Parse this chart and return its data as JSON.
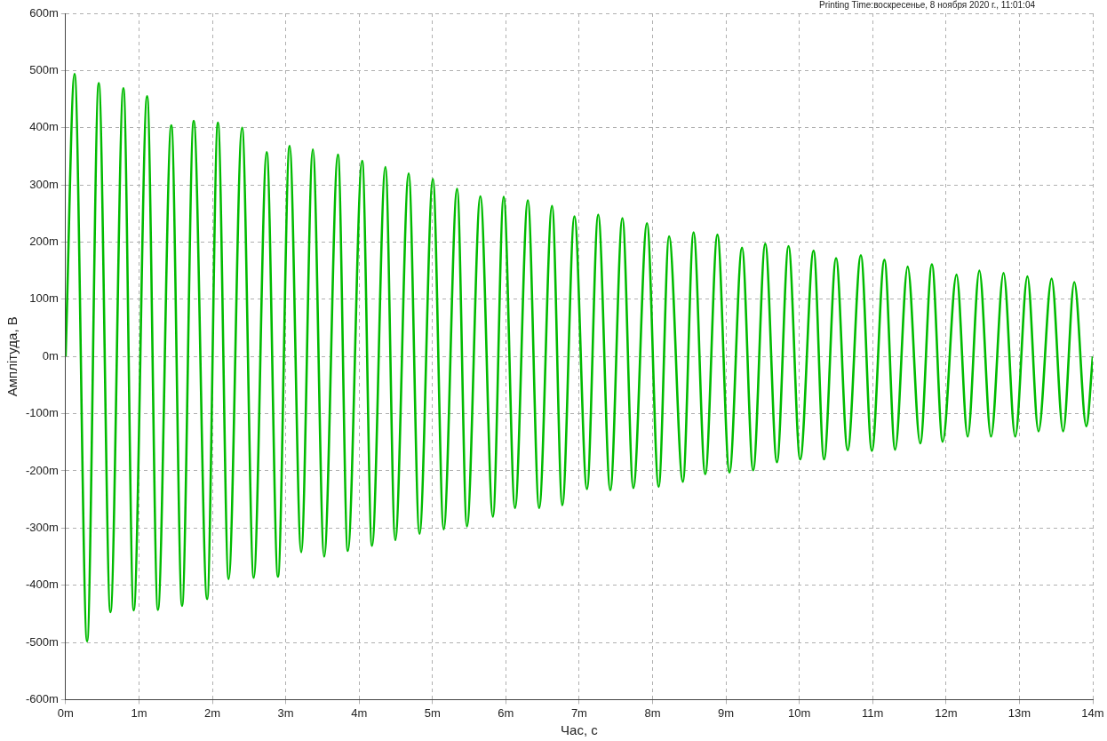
{
  "chart_data": {
    "type": "line",
    "xlabel": "Час, с",
    "ylabel": "Амплітуда, В",
    "annotations": [
      "Printing Time:воскресенье, 8 ноября 2020 г., 11:01:04"
    ],
    "x": [
      0,
      0.122,
      0.293,
      0.452,
      0.611,
      0.788,
      0.928,
      1.111,
      1.258,
      1.441,
      1.587,
      1.746,
      1.929,
      2.076,
      2.222,
      2.405,
      2.564,
      2.741,
      2.894,
      3.053,
      3.211,
      3.37,
      3.524,
      3.712,
      3.846,
      4.042,
      4.176,
      4.359,
      4.493,
      4.676,
      4.823,
      5.006,
      5.153,
      5.336,
      5.47,
      5.653,
      5.824,
      5.971,
      6.125,
      6.3,
      6.454,
      6.63,
      6.77,
      6.935,
      7.106,
      7.259,
      7.424,
      7.589,
      7.738,
      7.924,
      8.083,
      8.225,
      8.413,
      8.559,
      8.718,
      8.884,
      9.048,
      9.219,
      9.371,
      9.536,
      9.695,
      9.853,
      10.012,
      10.195,
      10.337,
      10.501,
      10.659,
      10.839,
      10.989,
      11.16,
      11.306,
      11.477,
      11.648,
      11.807,
      11.954,
      12.143,
      12.295,
      12.454,
      12.613,
      12.784,
      12.943,
      13.109,
      13.26,
      13.439,
      13.596,
      13.748,
      13.912,
      14
    ],
    "series": [
      {
        "color": "#00bb00",
        "values": [
          0,
          494,
          -498,
          478,
          -447,
          469,
          -444,
          455,
          -443,
          404,
          -436,
          412,
          -424,
          409,
          -389,
          400,
          -387,
          357,
          -385,
          368,
          -342,
          362,
          -350,
          353,
          -340,
          342,
          -331,
          331,
          -321,
          320,
          -310,
          310,
          -302,
          293,
          -297,
          280,
          -280,
          279,
          -265,
          273,
          -265,
          263,
          -260,
          245,
          -232,
          248,
          -234,
          242,
          -230,
          233,
          -228,
          210,
          -219,
          217,
          -206,
          213,
          -203,
          190,
          -199,
          197,
          -185,
          193,
          -180,
          185,
          -180,
          172,
          -164,
          177,
          -165,
          169,
          -163,
          157,
          -152,
          161,
          -149,
          143,
          -140,
          150,
          -140,
          146,
          -140,
          140,
          -131,
          136,
          -131,
          130,
          -122,
          0
        ]
      }
    ],
    "xlim": [
      0,
      14
    ],
    "xticks": [
      {
        "value": 0,
        "label": "0m"
      },
      {
        "value": 1,
        "label": "1m"
      },
      {
        "value": 2,
        "label": "2m"
      },
      {
        "value": 3,
        "label": "3m"
      },
      {
        "value": 4,
        "label": "4m"
      },
      {
        "value": 5,
        "label": "5m"
      },
      {
        "value": 6,
        "label": "6m"
      },
      {
        "value": 7,
        "label": "7m"
      },
      {
        "value": 8,
        "label": "8m"
      },
      {
        "value": 9,
        "label": "9m"
      },
      {
        "value": 10,
        "label": "10m"
      },
      {
        "value": 11,
        "label": "11m"
      },
      {
        "value": 12,
        "label": "12m"
      },
      {
        "value": 13,
        "label": "13m"
      },
      {
        "value": 14,
        "label": "14m"
      }
    ],
    "ylim": [
      -600,
      600
    ],
    "yticks": [
      {
        "value": -600,
        "label": "-600m"
      },
      {
        "value": -500,
        "label": "-500m"
      },
      {
        "value": -400,
        "label": "-400m"
      },
      {
        "value": -300,
        "label": "-300m"
      },
      {
        "value": -200,
        "label": "-200m"
      },
      {
        "value": -100,
        "label": "-100m"
      },
      {
        "value": 0,
        "label": "0m"
      },
      {
        "value": 100,
        "label": "100m"
      },
      {
        "value": 200,
        "label": "200m"
      },
      {
        "value": 300,
        "label": "300m"
      },
      {
        "value": 400,
        "label": "400m"
      },
      {
        "value": 500,
        "label": "500m"
      },
      {
        "value": 600,
        "label": "600m"
      }
    ],
    "grid": true
  }
}
